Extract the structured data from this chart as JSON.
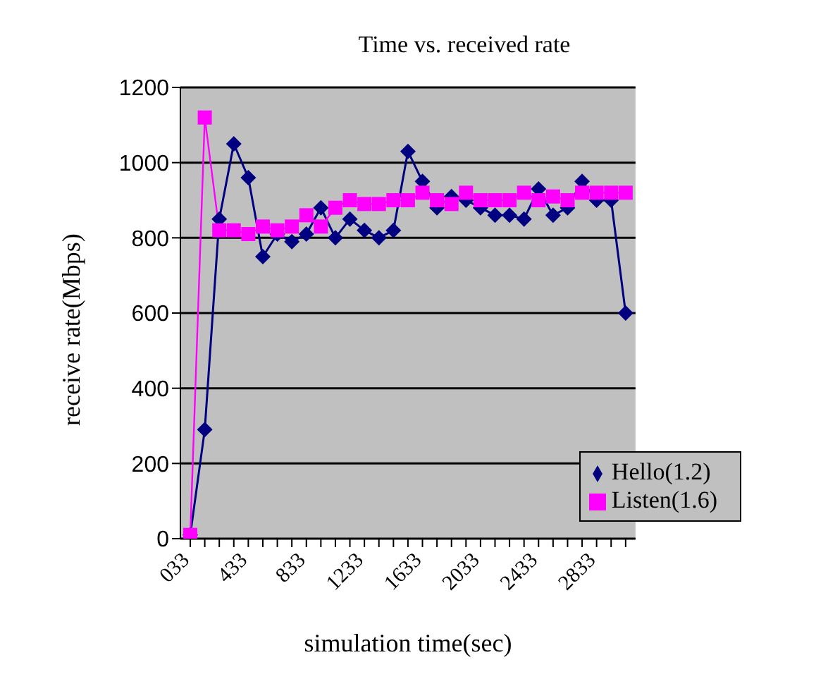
{
  "chart_data": {
    "type": "line",
    "title": "Time vs. received rate",
    "xlabel": "simulation time(sec)",
    "ylabel": "receive rate(Mbps)",
    "categories": [
      "033",
      null,
      null,
      null,
      "433",
      null,
      null,
      null,
      "833",
      null,
      null,
      null,
      "1233",
      null,
      null,
      null,
      "1633",
      null,
      null,
      null,
      "2033",
      null,
      null,
      null,
      "2433",
      null,
      null,
      null,
      "2833",
      null,
      null
    ],
    "series": [
      {
        "name": "Hello(1.2)",
        "color": "#000080",
        "marker": "diamond",
        "values": [
          10,
          290,
          850,
          1050,
          960,
          750,
          810,
          790,
          810,
          880,
          800,
          850,
          820,
          800,
          820,
          1030,
          950,
          880,
          910,
          900,
          880,
          860,
          860,
          850,
          930,
          860,
          880,
          950,
          900,
          900,
          600
        ]
      },
      {
        "name": "Listen(1.6)",
        "color": "#ff00ff",
        "marker": "square",
        "values": [
          10,
          1120,
          820,
          820,
          810,
          830,
          820,
          830,
          860,
          830,
          880,
          900,
          890,
          890,
          900,
          900,
          920,
          900,
          890,
          920,
          900,
          900,
          900,
          920,
          900,
          910,
          900,
          920,
          920,
          920,
          920
        ]
      }
    ],
    "ylim": [
      0,
      1200
    ],
    "yticks": [
      0,
      200,
      400,
      600,
      800,
      1000,
      1200
    ],
    "grid": "y",
    "legend": "right"
  }
}
